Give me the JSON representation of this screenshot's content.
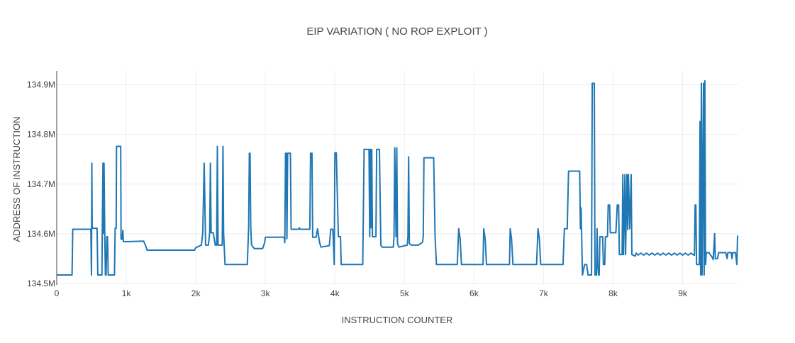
{
  "chart_data": {
    "type": "line",
    "title": "EIP VARIATION ( NO ROP EXPLOIT )",
    "xlabel": "INSTRUCTION  COUNTER",
    "ylabel": "ADDRESS OF INSTRUCTION",
    "xlim": [
      0,
      9800
    ],
    "ylim": [
      134.497,
      134.928
    ],
    "x_ticks": [
      0,
      1000,
      2000,
      3000,
      4000,
      5000,
      6000,
      7000,
      8000,
      9000
    ],
    "x_tick_labels": [
      "0",
      "1k",
      "2k",
      "3k",
      "4k",
      "5k",
      "6k",
      "7k",
      "8k",
      "9k"
    ],
    "y_ticks": [
      134.5,
      134.6,
      134.7,
      134.8,
      134.9
    ],
    "y_tick_labels": [
      "134.5M",
      "134.6M",
      "134.7M",
      "134.8M",
      "134.9M"
    ],
    "y_unit": "M",
    "grid": true,
    "line_color": "#1f77b4",
    "series": [
      {
        "points": [
          [
            0,
            134.517
          ],
          [
            220,
            134.517
          ],
          [
            230,
            134.609
          ],
          [
            490,
            134.609
          ],
          [
            500,
            134.517
          ],
          [
            505,
            134.742
          ],
          [
            510,
            134.611
          ],
          [
            580,
            134.611
          ],
          [
            590,
            134.517
          ],
          [
            650,
            134.517
          ],
          [
            655,
            134.601
          ],
          [
            665,
            134.742
          ],
          [
            670,
            134.601
          ],
          [
            680,
            134.742
          ],
          [
            690,
            134.601
          ],
          [
            700,
            134.517
          ],
          [
            710,
            134.517
          ],
          [
            720,
            134.594
          ],
          [
            730,
            134.594
          ],
          [
            740,
            134.517
          ],
          [
            830,
            134.517
          ],
          [
            840,
            134.611
          ],
          [
            855,
            134.611
          ],
          [
            860,
            134.776
          ],
          [
            920,
            134.776
          ],
          [
            925,
            134.589
          ],
          [
            940,
            134.589
          ],
          [
            950,
            134.607
          ],
          [
            960,
            134.584
          ],
          [
            1000,
            134.584
          ],
          [
            1250,
            134.585
          ],
          [
            1280,
            134.575
          ],
          [
            1300,
            134.567
          ],
          [
            1980,
            134.567
          ],
          [
            2000,
            134.572
          ],
          [
            2080,
            134.577
          ],
          [
            2100,
            134.602
          ],
          [
            2120,
            134.742
          ],
          [
            2140,
            134.577
          ],
          [
            2180,
            134.577
          ],
          [
            2200,
            134.602
          ],
          [
            2210,
            134.742
          ],
          [
            2220,
            134.602
          ],
          [
            2250,
            134.602
          ],
          [
            2280,
            134.577
          ],
          [
            2300,
            134.577
          ],
          [
            2310,
            134.776
          ],
          [
            2320,
            134.577
          ],
          [
            2380,
            134.577
          ],
          [
            2390,
            134.776
          ],
          [
            2400,
            134.602
          ],
          [
            2420,
            134.538
          ],
          [
            2740,
            134.538
          ],
          [
            2760,
            134.612
          ],
          [
            2770,
            134.762
          ],
          [
            2780,
            134.762
          ],
          [
            2790,
            134.612
          ],
          [
            2800,
            134.578
          ],
          [
            2840,
            134.57
          ],
          [
            2960,
            134.57
          ],
          [
            2990,
            134.582
          ],
          [
            3000,
            134.593
          ],
          [
            3270,
            134.593
          ],
          [
            3280,
            134.582
          ],
          [
            3290,
            134.762
          ],
          [
            3300,
            134.762
          ],
          [
            3310,
            134.59
          ],
          [
            3320,
            134.762
          ],
          [
            3360,
            134.762
          ],
          [
            3370,
            134.609
          ],
          [
            3480,
            134.609
          ],
          [
            3490,
            134.612
          ],
          [
            3500,
            134.609
          ],
          [
            3640,
            134.609
          ],
          [
            3650,
            134.762
          ],
          [
            3670,
            134.762
          ],
          [
            3680,
            134.593
          ],
          [
            3730,
            134.593
          ],
          [
            3750,
            134.61
          ],
          [
            3780,
            134.582
          ],
          [
            3800,
            134.573
          ],
          [
            3920,
            134.576
          ],
          [
            3940,
            134.609
          ],
          [
            3970,
            134.609
          ],
          [
            3990,
            134.538
          ],
          [
            4000,
            134.763
          ],
          [
            4020,
            134.763
          ],
          [
            4050,
            134.594
          ],
          [
            4080,
            134.594
          ],
          [
            4090,
            134.538
          ],
          [
            4400,
            134.538
          ],
          [
            4420,
            134.77
          ],
          [
            4490,
            134.77
          ],
          [
            4500,
            134.594
          ],
          [
            4510,
            134.77
          ],
          [
            4520,
            134.612
          ],
          [
            4530,
            134.77
          ],
          [
            4540,
            134.594
          ],
          [
            4560,
            134.594
          ],
          [
            4590,
            134.594
          ],
          [
            4600,
            134.77
          ],
          [
            4640,
            134.77
          ],
          [
            4660,
            134.577
          ],
          [
            4680,
            134.573
          ],
          [
            4840,
            134.573
          ],
          [
            4850,
            134.594
          ],
          [
            4860,
            134.773
          ],
          [
            4880,
            134.594
          ],
          [
            4890,
            134.773
          ],
          [
            4900,
            134.58
          ],
          [
            4920,
            134.573
          ],
          [
            5040,
            134.577
          ],
          [
            5050,
            134.594
          ],
          [
            5060,
            134.755
          ],
          [
            5070,
            134.58
          ],
          [
            5100,
            134.577
          ],
          [
            5200,
            134.577
          ],
          [
            5260,
            134.583
          ],
          [
            5270,
            134.594
          ],
          [
            5280,
            134.753
          ],
          [
            5420,
            134.753
          ],
          [
            5440,
            134.594
          ],
          [
            5460,
            134.538
          ],
          [
            5760,
            134.538
          ],
          [
            5780,
            134.61
          ],
          [
            5800,
            134.59
          ],
          [
            5820,
            134.538
          ],
          [
            6130,
            134.538
          ],
          [
            6140,
            134.61
          ],
          [
            6160,
            134.59
          ],
          [
            6180,
            134.538
          ],
          [
            6510,
            134.538
          ],
          [
            6520,
            134.61
          ],
          [
            6540,
            134.59
          ],
          [
            6560,
            134.538
          ],
          [
            6900,
            134.538
          ],
          [
            6920,
            134.61
          ],
          [
            6940,
            134.59
          ],
          [
            6960,
            134.538
          ],
          [
            7280,
            134.538
          ],
          [
            7300,
            134.61
          ],
          [
            7340,
            134.61
          ],
          [
            7360,
            134.726
          ],
          [
            7520,
            134.726
          ],
          [
            7530,
            134.61
          ],
          [
            7540,
            134.652
          ],
          [
            7560,
            134.517
          ],
          [
            7590,
            134.538
          ],
          [
            7620,
            134.538
          ],
          [
            7640,
            134.517
          ],
          [
            7690,
            134.517
          ],
          [
            7700,
            134.903
          ],
          [
            7730,
            134.903
          ],
          [
            7740,
            134.517
          ],
          [
            7760,
            134.517
          ],
          [
            7770,
            134.61
          ],
          [
            7780,
            134.538
          ],
          [
            7790,
            134.517
          ],
          [
            7800,
            134.517
          ],
          [
            7810,
            134.594
          ],
          [
            7850,
            134.594
          ],
          [
            7860,
            134.538
          ],
          [
            7880,
            134.538
          ],
          [
            7890,
            134.594
          ],
          [
            7920,
            134.594
          ],
          [
            7930,
            134.658
          ],
          [
            7950,
            134.658
          ],
          [
            7960,
            134.602
          ],
          [
            8040,
            134.602
          ],
          [
            8060,
            134.658
          ],
          [
            8080,
            134.658
          ],
          [
            8090,
            134.558
          ],
          [
            8130,
            134.558
          ],
          [
            8140,
            134.719
          ],
          [
            8150,
            134.558
          ],
          [
            8170,
            134.719
          ],
          [
            8180,
            134.558
          ],
          [
            8200,
            134.719
          ],
          [
            8210,
            134.608
          ],
          [
            8220,
            134.719
          ],
          [
            8240,
            134.61
          ],
          [
            8260,
            134.719
          ],
          [
            8270,
            134.558
          ],
          [
            8320,
            134.555
          ],
          [
            8330,
            134.561
          ],
          [
            8360,
            134.557
          ],
          [
            8400,
            134.561
          ],
          [
            8440,
            134.557
          ],
          [
            8480,
            134.561
          ],
          [
            8520,
            134.557
          ],
          [
            8560,
            134.561
          ],
          [
            8600,
            134.557
          ],
          [
            8640,
            134.561
          ],
          [
            8680,
            134.557
          ],
          [
            8720,
            134.561
          ],
          [
            8760,
            134.557
          ],
          [
            8800,
            134.561
          ],
          [
            8840,
            134.557
          ],
          [
            8880,
            134.561
          ],
          [
            8920,
            134.557
          ],
          [
            8960,
            134.561
          ],
          [
            9000,
            134.557
          ],
          [
            9040,
            134.561
          ],
          [
            9080,
            134.557
          ],
          [
            9120,
            134.561
          ],
          [
            9160,
            134.557
          ],
          [
            9170,
            134.557
          ],
          [
            9180,
            134.658
          ],
          [
            9190,
            134.658
          ],
          [
            9200,
            134.538
          ],
          [
            9240,
            134.538
          ],
          [
            9250,
            134.826
          ],
          [
            9260,
            134.517
          ],
          [
            9270,
            134.903
          ],
          [
            9280,
            134.517
          ],
          [
            9300,
            134.903
          ],
          [
            9310,
            134.517
          ],
          [
            9320,
            134.908
          ],
          [
            9330,
            134.538
          ],
          [
            9340,
            134.562
          ],
          [
            9380,
            134.562
          ],
          [
            9400,
            134.557
          ],
          [
            9420,
            134.554
          ],
          [
            9440,
            134.548
          ],
          [
            9460,
            134.6
          ],
          [
            9470,
            134.55
          ],
          [
            9500,
            134.55
          ],
          [
            9520,
            134.562
          ],
          [
            9620,
            134.562
          ],
          [
            9640,
            134.55
          ],
          [
            9650,
            134.562
          ],
          [
            9700,
            134.562
          ],
          [
            9710,
            134.55
          ],
          [
            9720,
            134.562
          ],
          [
            9760,
            134.562
          ],
          [
            9780,
            134.538
          ],
          [
            9790,
            134.595
          ],
          [
            9800,
            134.595
          ]
        ]
      }
    ]
  }
}
